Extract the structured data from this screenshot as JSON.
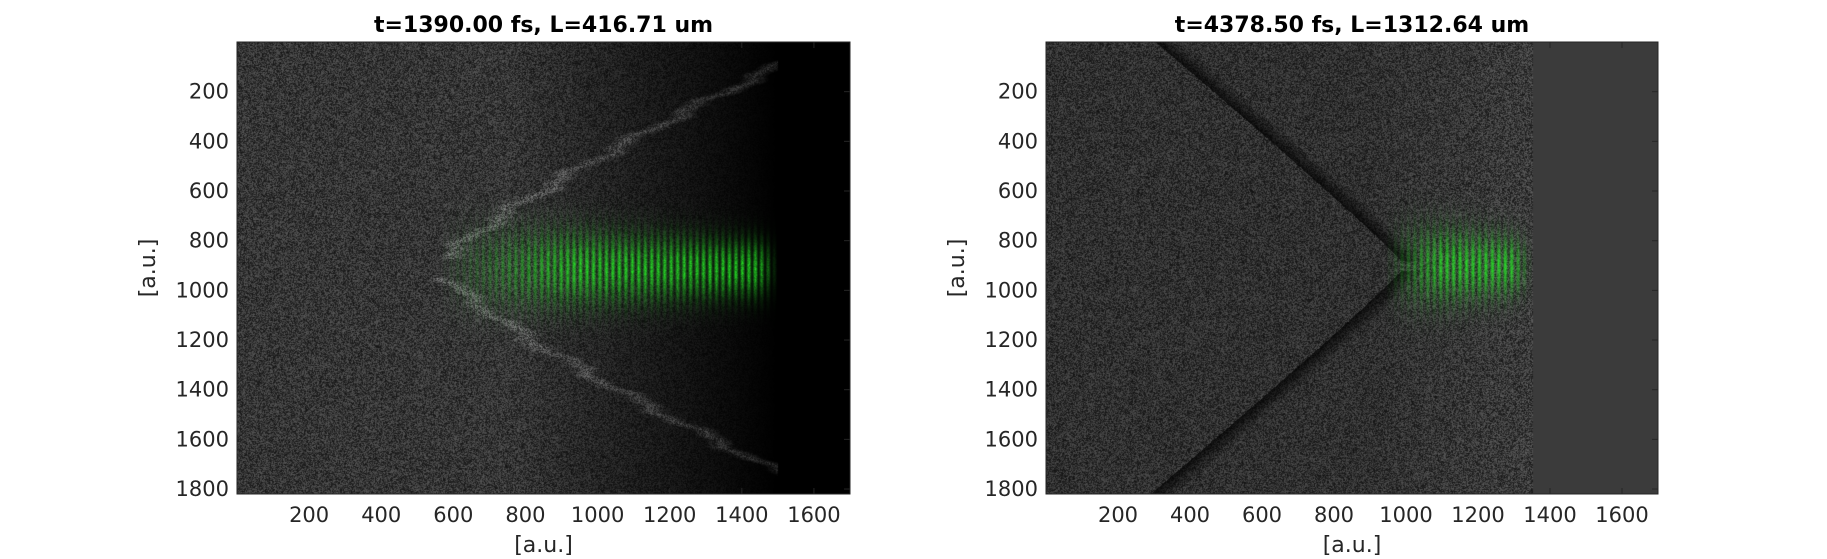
{
  "chart_data": [
    {
      "type": "heatmap",
      "title": "t=1390.00 fs, L=416.71 um",
      "xlabel": "[a.u.]",
      "ylabel": "[a.u.]",
      "xlim": [
        0,
        1700
      ],
      "ylim": [
        1820,
        0
      ],
      "xticks": [
        200,
        400,
        600,
        800,
        1000,
        1200,
        1400,
        1600
      ],
      "yticks": [
        200,
        400,
        600,
        800,
        1000,
        1200,
        1400,
        1600,
        1800
      ],
      "background_level": 0.0,
      "pulse_center": [
        1000,
        910
      ],
      "pulse_x_range": [
        560,
        1500
      ],
      "colors": {
        "noise": "#8c8c8c",
        "pulse": "#37e637"
      }
    },
    {
      "type": "heatmap",
      "title": "t=4378.50 fs, L=1312.64 um",
      "xlabel": "[a.u.]",
      "ylabel": "[a.u.]",
      "xlim": [
        0,
        1700
      ],
      "ylim": [
        1820,
        0
      ],
      "xticks": [
        200,
        400,
        600,
        800,
        1000,
        1200,
        1400,
        1600
      ],
      "yticks": [
        200,
        400,
        600,
        800,
        1000,
        1200,
        1400,
        1600,
        1800
      ],
      "background_level": 0.42,
      "pulse_center": [
        1150,
        900
      ],
      "pulse_x_range": [
        940,
        1350
      ],
      "colors": {
        "noise": "#8c8c8c",
        "pulse": "#37e637"
      }
    }
  ]
}
